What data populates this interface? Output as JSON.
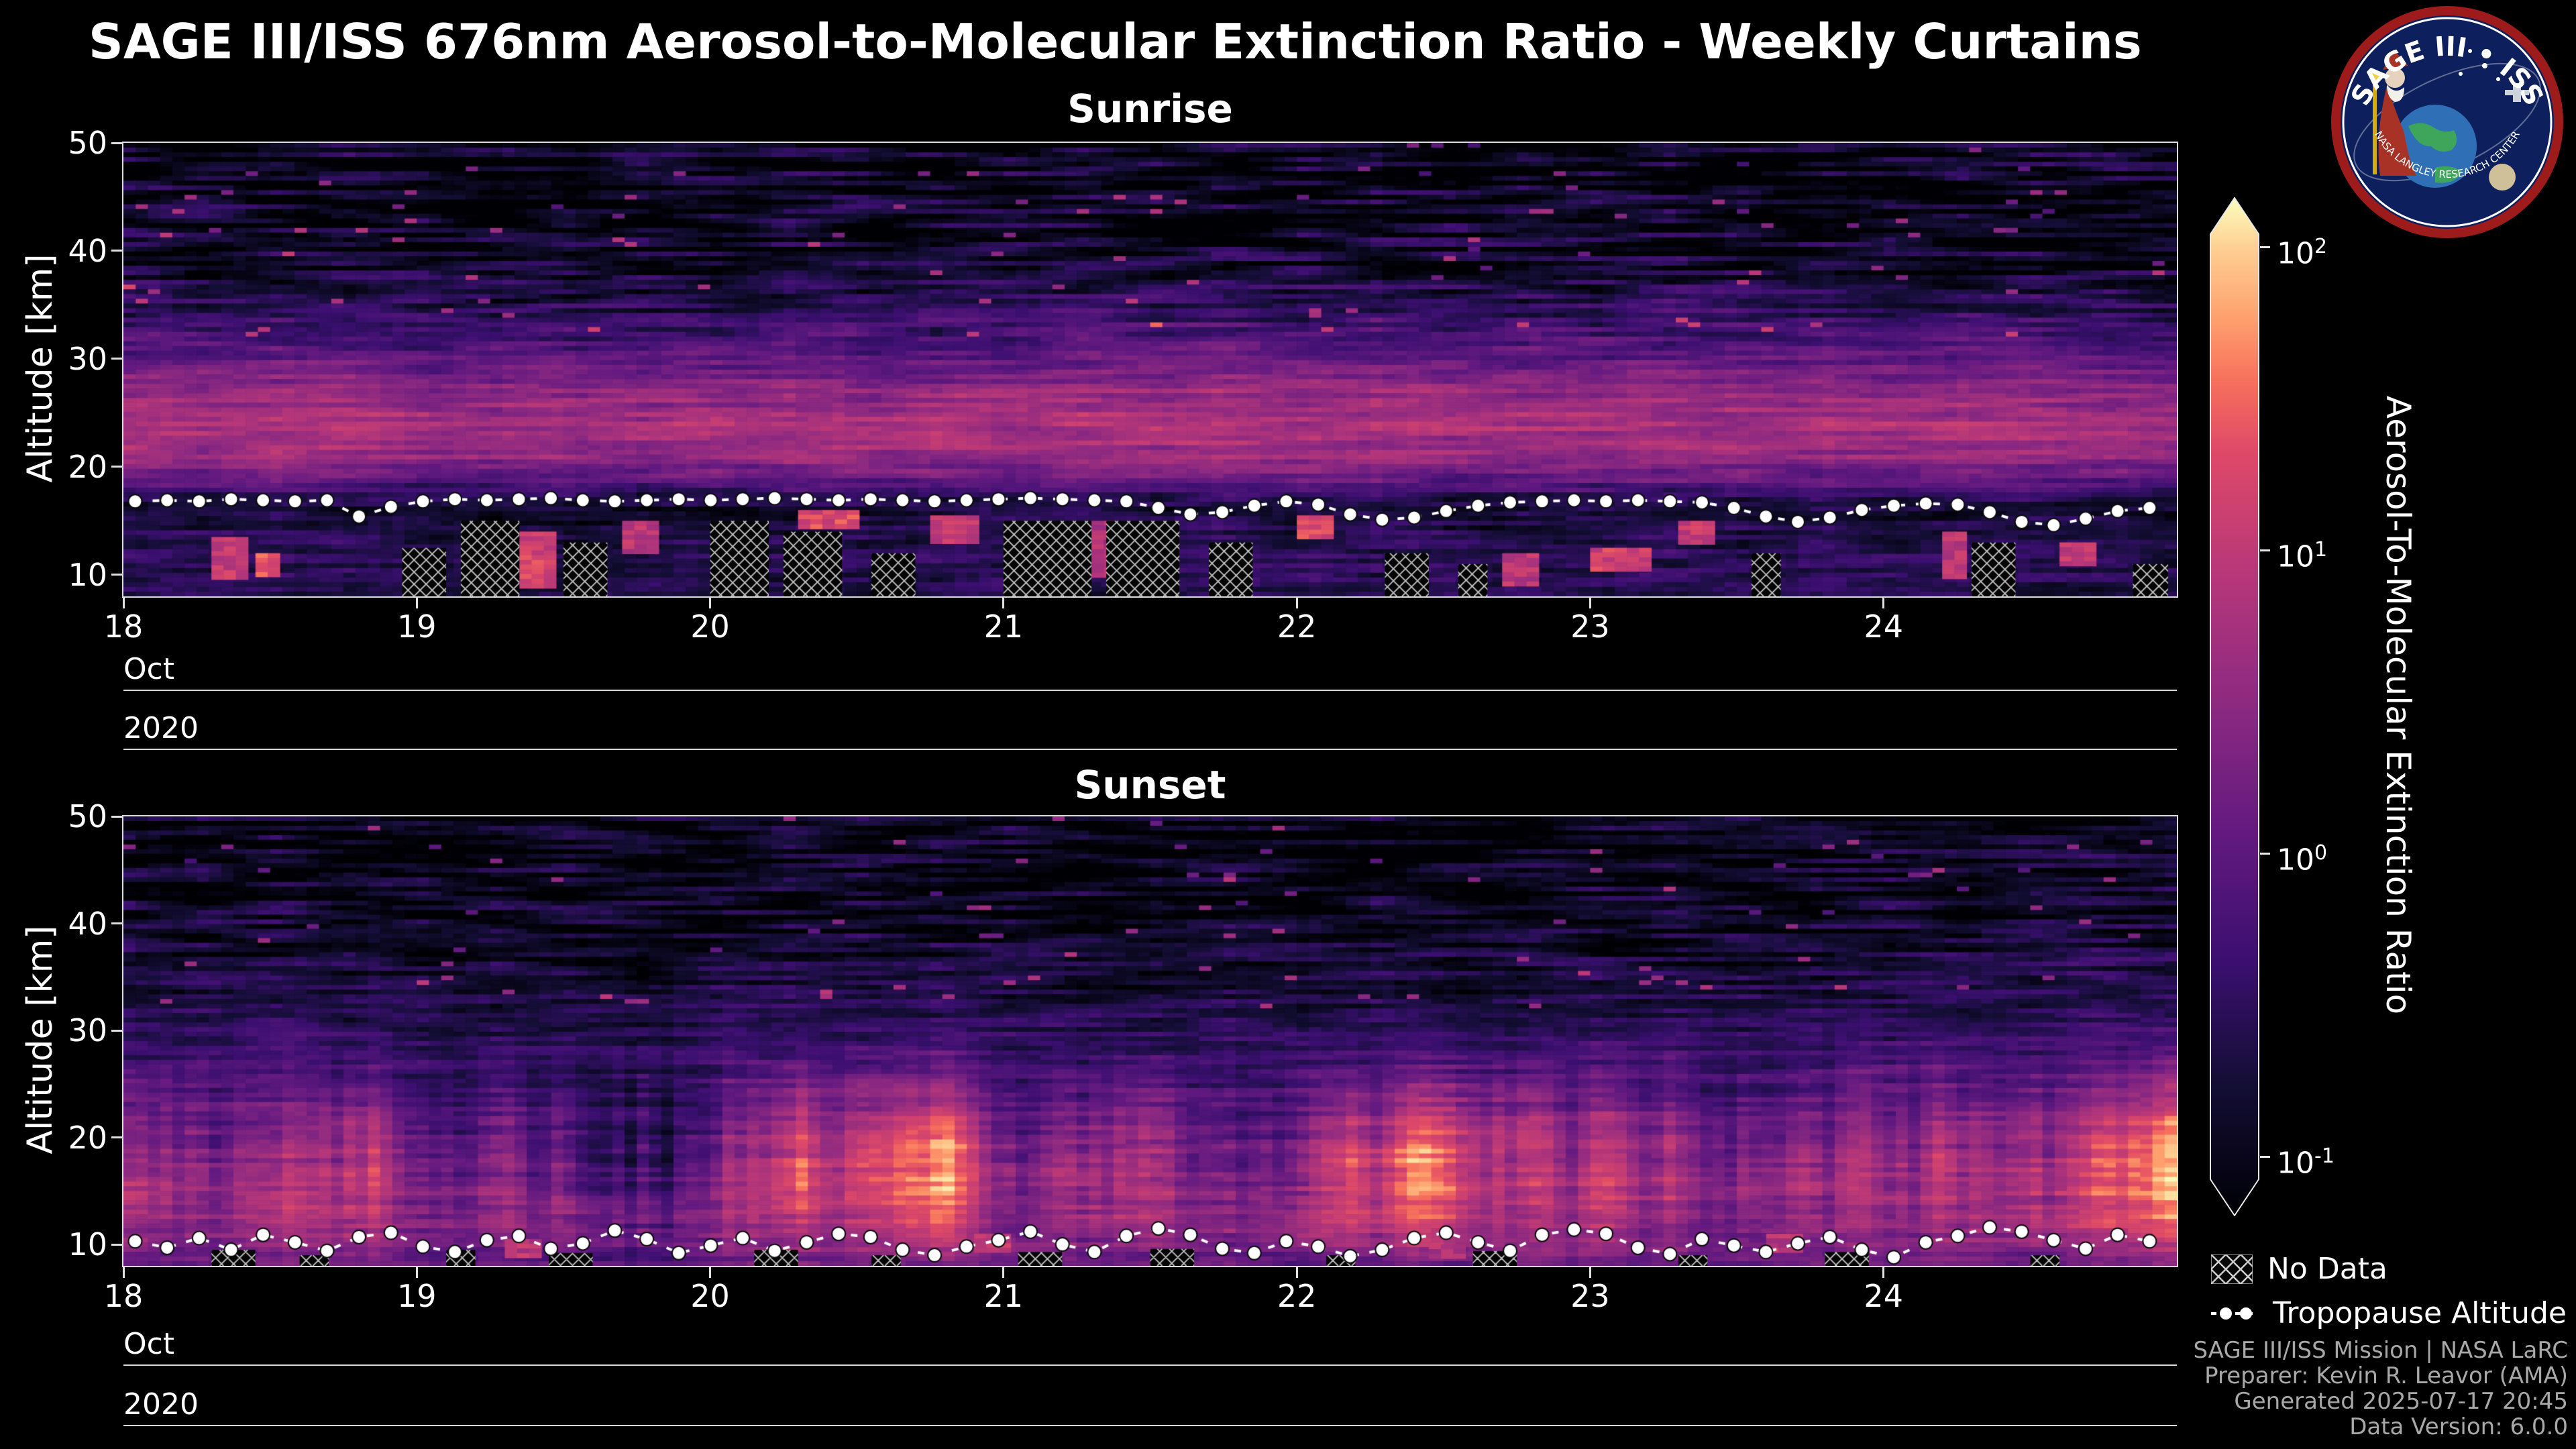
{
  "title": "SAGE III/ISS 676nm Aerosol-to-Molecular Extinction Ratio - Weekly Curtains",
  "logo": {
    "title": "SAGE III • ISS",
    "arc_text": "NASA LANGLEY RESEARCH CENTER"
  },
  "axes": {
    "ylabel": "Altitude [km]",
    "yticks": [
      10,
      20,
      30,
      40,
      50
    ],
    "xticks": [
      "18",
      "19",
      "20",
      "21",
      "22",
      "23",
      "24"
    ],
    "month": "Oct",
    "year": "2020",
    "xlim": [
      18,
      25
    ],
    "ylim": [
      8,
      50
    ]
  },
  "colorbar": {
    "label": "Aerosol-To-Molecular Extinction Ratio",
    "tick_exponents": [
      2,
      1,
      0,
      -1
    ],
    "scale": "log",
    "clim": [
      0.1,
      100
    ],
    "colormap": "magma"
  },
  "legend": {
    "no_data": "No Data",
    "tropopause": "Tropopause Altitude"
  },
  "footer": {
    "lines": [
      "SAGE III/ISS Mission | NASA LaRC",
      "Preparer: Kevin R. Leavor (AMA)",
      "Generated 2025-07-17 20:45",
      "Data Version: 6.0.0"
    ]
  },
  "chart_data": [
    {
      "type": "heatmap",
      "title": "Sunrise",
      "xlim": [
        18,
        25
      ],
      "ylim": [
        8,
        50
      ],
      "x_unit": "day of Oct 2020",
      "colormap": "magma",
      "scale": "log",
      "clim": [
        0.1,
        100
      ],
      "profile_points": [
        [
          8,
          -0.5
        ],
        [
          10,
          -0.45
        ],
        [
          12,
          -0.4
        ],
        [
          14,
          -0.5
        ],
        [
          16,
          -0.65
        ],
        [
          17.5,
          -0.35
        ],
        [
          19,
          0.15
        ],
        [
          21,
          0.6
        ],
        [
          24,
          0.78
        ],
        [
          27,
          0.55
        ],
        [
          30,
          0.1
        ],
        [
          33,
          -0.2
        ],
        [
          36,
          -0.5
        ],
        [
          40,
          -0.72
        ],
        [
          45,
          -0.85
        ],
        [
          50,
          -0.8
        ]
      ],
      "noise": {
        "speckle": 0.3,
        "high_alt_speckle": 0.62,
        "col_variation": 0.15
      },
      "tropopause": {
        "x_start": 18.04,
        "x_step": 0.109,
        "y": [
          16.8,
          16.9,
          16.8,
          17.0,
          16.9,
          16.8,
          16.9,
          15.4,
          16.3,
          16.8,
          17.0,
          16.9,
          17.0,
          17.1,
          16.9,
          16.8,
          16.9,
          17.0,
          16.9,
          17.0,
          17.1,
          17.0,
          16.9,
          17.0,
          16.9,
          16.8,
          16.9,
          17.0,
          17.1,
          17.0,
          16.9,
          16.8,
          16.2,
          15.6,
          15.8,
          16.4,
          16.8,
          16.5,
          15.6,
          15.1,
          15.3,
          15.9,
          16.4,
          16.7,
          16.8,
          16.9,
          16.8,
          16.9,
          16.8,
          16.7,
          16.2,
          15.4,
          14.9,
          15.3,
          16.0,
          16.4,
          16.6,
          16.5,
          15.8,
          14.9,
          14.6,
          15.2,
          15.9,
          16.2
        ]
      },
      "no_data_regions": [
        [
          18.95,
          19.1,
          8,
          12.5
        ],
        [
          19.15,
          19.35,
          8,
          15
        ],
        [
          19.5,
          19.65,
          8,
          13
        ],
        [
          20.0,
          20.2,
          8,
          15
        ],
        [
          20.25,
          20.45,
          8,
          14
        ],
        [
          20.55,
          20.7,
          8,
          12
        ],
        [
          21.0,
          21.3,
          8,
          15
        ],
        [
          21.35,
          21.6,
          8,
          15
        ],
        [
          21.7,
          21.85,
          8,
          13
        ],
        [
          22.3,
          22.45,
          8,
          12
        ],
        [
          22.55,
          22.65,
          8,
          11
        ],
        [
          23.55,
          23.65,
          8,
          12
        ],
        [
          24.3,
          24.45,
          8,
          13
        ],
        [
          24.85,
          24.97,
          8,
          11
        ]
      ],
      "enhanced_regions": [
        [
          18.3,
          18.4,
          10,
          13.5,
          1.0
        ],
        [
          18.45,
          18.5,
          10,
          12,
          1.3
        ],
        [
          19.35,
          19.45,
          9,
          14,
          1.1
        ],
        [
          19.7,
          19.8,
          12,
          15,
          0.9
        ],
        [
          20.3,
          20.5,
          14.5,
          16,
          1.2
        ],
        [
          20.75,
          20.9,
          13,
          15.5,
          1.0
        ],
        [
          21.3,
          21.35,
          10,
          15,
          0.8
        ],
        [
          22.0,
          22.1,
          13.5,
          15.5,
          1.2
        ],
        [
          22.7,
          22.8,
          9,
          12,
          0.9
        ],
        [
          23.0,
          23.2,
          10.5,
          12.5,
          1.1
        ],
        [
          23.3,
          23.4,
          13,
          15,
          1.0
        ],
        [
          24.2,
          24.25,
          10,
          14,
          0.9
        ],
        [
          24.6,
          24.7,
          11,
          13,
          1.0
        ]
      ]
    },
    {
      "type": "heatmap",
      "title": "Sunset",
      "xlim": [
        18,
        25
      ],
      "ylim": [
        8,
        50
      ],
      "x_unit": "day of Oct 2020",
      "colormap": "magma",
      "scale": "log",
      "clim": [
        0.1,
        100
      ],
      "profile_points": [
        [
          8,
          0.1
        ],
        [
          10,
          0.45
        ],
        [
          12,
          0.62
        ],
        [
          15,
          0.7
        ],
        [
          18,
          0.6
        ],
        [
          21,
          0.38
        ],
        [
          24,
          0.1
        ],
        [
          27,
          -0.15
        ],
        [
          30,
          -0.38
        ],
        [
          34,
          -0.55
        ],
        [
          38,
          -0.68
        ],
        [
          43,
          -0.78
        ],
        [
          50,
          -0.82
        ]
      ],
      "noise": {
        "speckle": 0.28,
        "high_alt_speckle": 0.52,
        "col_variation": 0.12,
        "plume_strength": 0.5
      },
      "tropopause": {
        "x_start": 18.04,
        "x_step": 0.109,
        "y": [
          10.3,
          9.7,
          10.6,
          9.5,
          10.9,
          10.2,
          9.4,
          10.7,
          11.1,
          9.8,
          9.3,
          10.4,
          10.8,
          9.6,
          10.1,
          11.3,
          10.5,
          9.2,
          9.9,
          10.6,
          9.4,
          10.2,
          11.0,
          10.7,
          9.5,
          9.0,
          9.8,
          10.4,
          11.2,
          10.0,
          9.3,
          10.8,
          11.5,
          10.9,
          9.6,
          9.2,
          10.3,
          9.8,
          8.9,
          9.5,
          10.6,
          11.1,
          10.2,
          9.4,
          10.9,
          11.4,
          11.0,
          9.7,
          9.1,
          10.5,
          9.9,
          9.3,
          10.1,
          10.7,
          9.5,
          8.8,
          10.2,
          10.8,
          11.6,
          11.2,
          10.4,
          9.6,
          10.9,
          10.3
        ]
      },
      "no_data_regions": [
        [
          18.3,
          18.45,
          8,
          9.5
        ],
        [
          18.6,
          18.7,
          8,
          9
        ],
        [
          19.1,
          19.2,
          8,
          9.5
        ],
        [
          19.45,
          19.6,
          8,
          9.2
        ],
        [
          20.15,
          20.3,
          8,
          9.5
        ],
        [
          20.55,
          20.65,
          8,
          9
        ],
        [
          21.05,
          21.2,
          8,
          9.3
        ],
        [
          21.5,
          21.65,
          8,
          9.6
        ],
        [
          22.1,
          22.2,
          8,
          9
        ],
        [
          22.6,
          22.75,
          8,
          9.4
        ],
        [
          23.3,
          23.4,
          8,
          9
        ],
        [
          23.8,
          23.95,
          8,
          9.3
        ],
        [
          24.5,
          24.6,
          8,
          9
        ]
      ],
      "enhanced_regions": [
        [
          19.3,
          19.4,
          9,
          10.5,
          0.9
        ],
        [
          20.9,
          21.0,
          9.5,
          11,
          1.0
        ],
        [
          22.45,
          22.55,
          9,
          10,
          0.8
        ],
        [
          23.6,
          23.7,
          9.5,
          11,
          0.9
        ]
      ]
    }
  ]
}
